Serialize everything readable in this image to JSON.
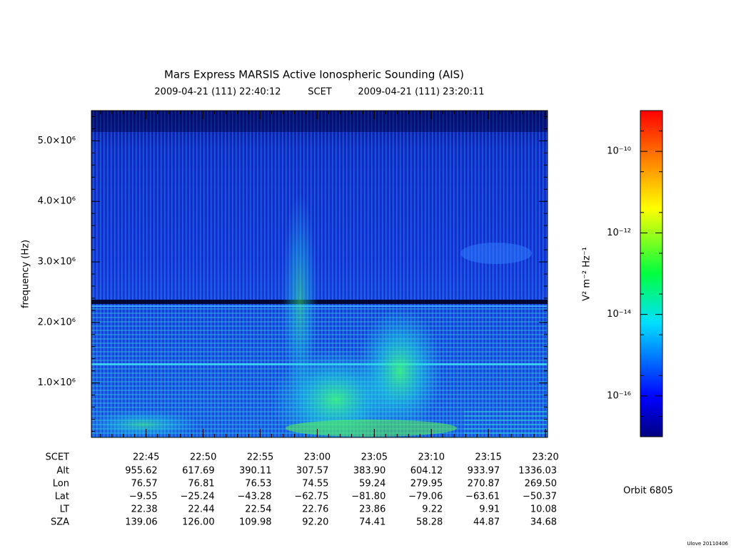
{
  "chart_data": {
    "type": "spectrogram",
    "title": "Mars Express MARSIS Active Ionospheric Sounding (AIS)",
    "start_time": "2009-04-21 (111) 22:40:12",
    "time_label": "SCET",
    "end_time": "2009-04-21 (111) 23:20:11",
    "ylabel": "frequency (Hz)",
    "ylim": [
      100000,
      5500000
    ],
    "yticks": [
      {
        "value": 1000000,
        "label": "1.0×10⁶"
      },
      {
        "value": 2000000,
        "label": "2.0×10⁶"
      },
      {
        "value": 3000000,
        "label": "3.0×10⁶"
      },
      {
        "value": 4000000,
        "label": "4.0×10⁶"
      },
      {
        "value": 5000000,
        "label": "5.0×10⁶"
      }
    ],
    "xticks": [
      "22:45",
      "22:50",
      "22:55",
      "23:00",
      "23:05",
      "23:10",
      "23:15",
      "23:20"
    ],
    "colorbar": {
      "label": "V² m⁻² Hz⁻¹",
      "log": true,
      "lim": [
        1e-17,
        1e-09
      ],
      "ticks": [
        {
          "value": 1e-16,
          "label": "10⁻¹⁶"
        },
        {
          "value": 1e-14,
          "label": "10⁻¹⁴"
        },
        {
          "value": 1e-12,
          "label": "10⁻¹²"
        },
        {
          "value": 1e-10,
          "label": "10⁻¹⁰"
        }
      ]
    }
  },
  "ephemeris": {
    "row_labels": [
      "SCET",
      "Alt",
      "Lon",
      "Lat",
      "LT",
      "SZA"
    ],
    "rows": [
      [
        "955.62",
        "617.69",
        "390.11",
        "307.57",
        "383.90",
        "604.12",
        "933.97",
        "1336.03"
      ],
      [
        "76.57",
        "76.81",
        "76.53",
        "74.55",
        "59.24",
        "279.95",
        "270.87",
        "269.50"
      ],
      [
        "−9.55",
        "−25.24",
        "−43.28",
        "−62.75",
        "−81.80",
        "−79.06",
        "−63.61",
        "−50.37"
      ],
      [
        "22.38",
        "22.44",
        "22.54",
        "22.76",
        "23.86",
        "9.22",
        "9.91",
        "10.08"
      ],
      [
        "139.06",
        "126.00",
        "109.98",
        "92.20",
        "74.41",
        "58.28",
        "44.87",
        "34.68"
      ]
    ]
  },
  "orbit": "Orbit 6805",
  "footer": "Ulove 20110406"
}
